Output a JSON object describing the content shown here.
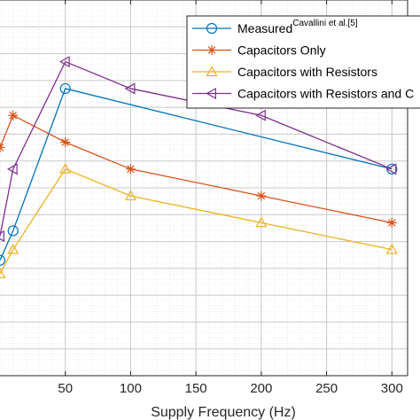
{
  "chart_data": {
    "type": "line",
    "title": "",
    "xlabel": "Supply Frequency (Hz)",
    "ylabel": "",
    "xlim": [
      0,
      312
    ],
    "ylim": [
      0,
      14
    ],
    "xticks": [
      50,
      100,
      150,
      200,
      250,
      300
    ],
    "grid": true,
    "minor_grid": true,
    "legend_position": "top-right",
    "series": [
      {
        "name": "Measured",
        "name_superscript": "Cavallini et al.[5]",
        "color": "#0072BD",
        "marker": "circle",
        "x": [
          0,
          10,
          50,
          300
        ],
        "y": [
          4.3,
          5.4,
          10.7,
          7.7
        ]
      },
      {
        "name": "Capacitors Only",
        "color": "#D95319",
        "marker": "asterisk",
        "x": [
          0,
          10,
          50,
          100,
          200,
          300
        ],
        "y": [
          8.5,
          9.7,
          8.7,
          7.7,
          6.7,
          5.7
        ]
      },
      {
        "name": "Capacitors with Resistors",
        "color": "#EDB120",
        "marker": "triangle-up",
        "x": [
          0,
          10,
          50,
          100,
          200,
          300
        ],
        "y": [
          3.8,
          4.7,
          7.7,
          6.7,
          5.7,
          4.7
        ]
      },
      {
        "name": "Capacitors with Resistors and C",
        "color": "#7E2F8E",
        "marker": "triangle-left",
        "x": [
          0,
          10,
          50,
          100,
          200,
          300
        ],
        "y": [
          5.2,
          7.7,
          11.7,
          10.7,
          9.7,
          7.7
        ]
      }
    ]
  }
}
